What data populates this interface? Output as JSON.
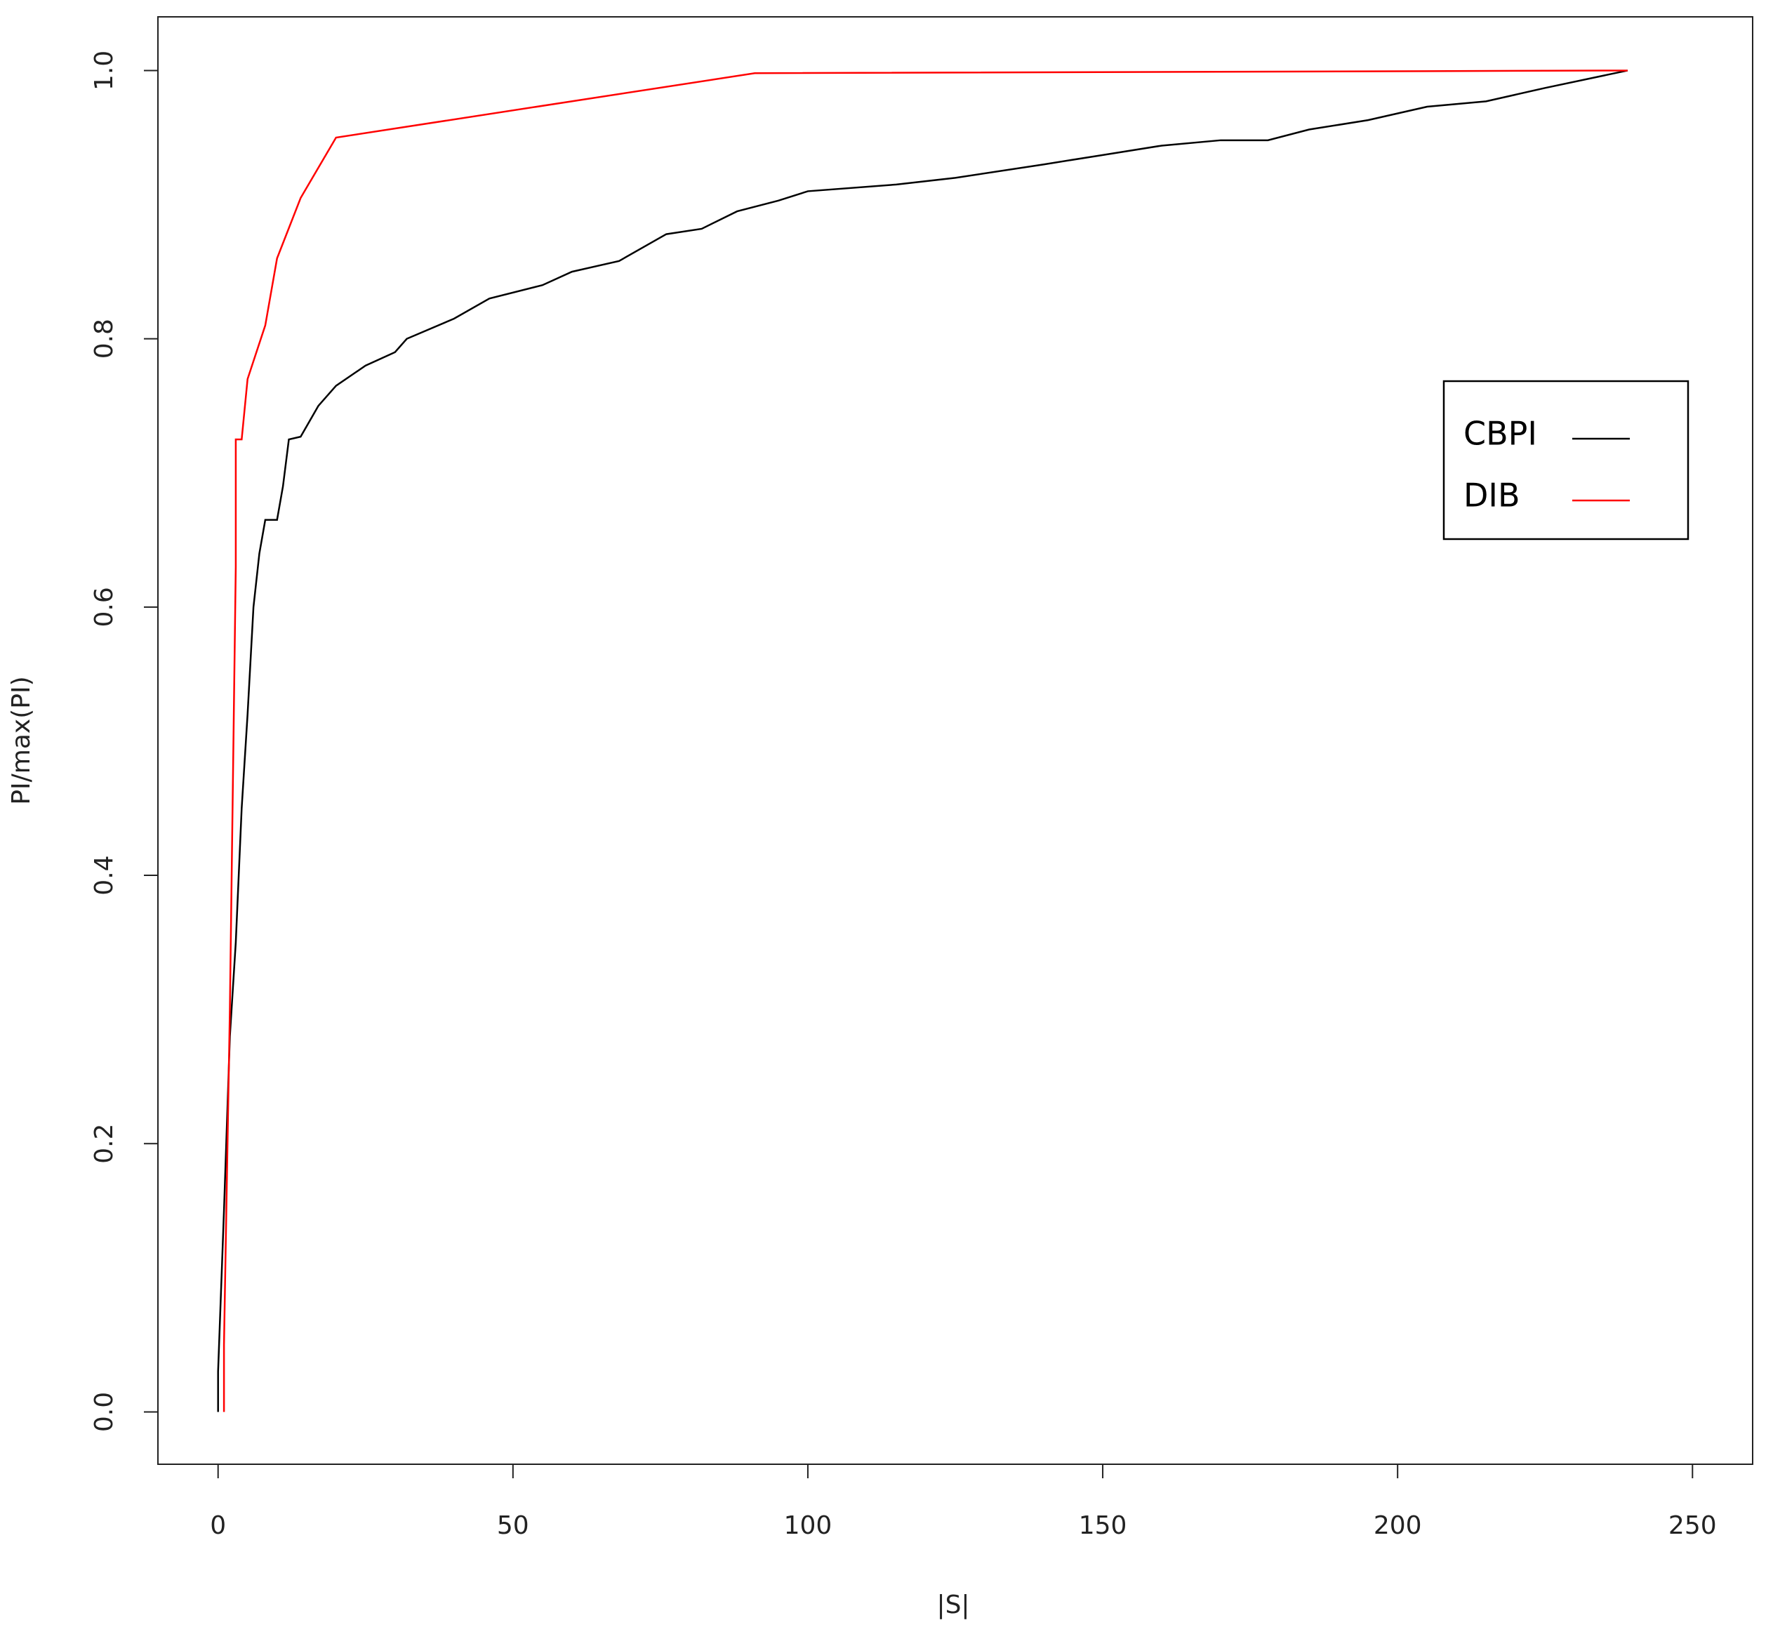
{
  "chart_data": {
    "type": "line",
    "xlabel": "|S|",
    "ylabel": "PI/max(PI)",
    "xlim": [
      -10.2,
      260.2
    ],
    "ylim": [
      -0.039,
      1.04
    ],
    "xticks": [
      0,
      50,
      100,
      150,
      200,
      250
    ],
    "yticks": [
      {
        "value": 0,
        "label": "0.0"
      },
      {
        "value": 0.2,
        "label": "0.2"
      },
      {
        "value": 0.4,
        "label": "0.4"
      },
      {
        "value": 0.6,
        "label": "0.6"
      },
      {
        "value": 0.8,
        "label": "0.8"
      },
      {
        "value": 1,
        "label": "1.0"
      }
    ],
    "legend": "right",
    "series": [
      {
        "name": "CBPI",
        "color": "#000000",
        "x": [
          0,
          0,
          1,
          2,
          3,
          4,
          5,
          6,
          7,
          8,
          10,
          11,
          12,
          14,
          17,
          20,
          25,
          30,
          32,
          40,
          46,
          55,
          60,
          68,
          76,
          82,
          88,
          95,
          100,
          115,
          125,
          140,
          150,
          160,
          170,
          178,
          185,
          195,
          205,
          215,
          225,
          239
        ],
        "values": [
          0,
          0.03,
          0.15,
          0.28,
          0.35,
          0.45,
          0.52,
          0.6,
          0.64,
          0.665,
          0.665,
          0.69,
          0.725,
          0.727,
          0.75,
          0.765,
          0.78,
          0.79,
          0.8,
          0.815,
          0.83,
          0.84,
          0.85,
          0.858,
          0.878,
          0.882,
          0.895,
          0.903,
          0.91,
          0.915,
          0.92,
          0.93,
          0.937,
          0.944,
          0.948,
          0.948,
          0.956,
          0.963,
          0.973,
          0.977,
          0.987,
          1.0
        ]
      },
      {
        "name": "DIB",
        "color": "#ff0000",
        "x": [
          1,
          1,
          2,
          3,
          3,
          4,
          5,
          8,
          10,
          14,
          20,
          91,
          239
        ],
        "values": [
          0,
          0.05,
          0.3,
          0.63,
          0.725,
          0.725,
          0.77,
          0.81,
          0.86,
          0.905,
          0.95,
          0.998,
          1.0
        ]
      }
    ]
  }
}
